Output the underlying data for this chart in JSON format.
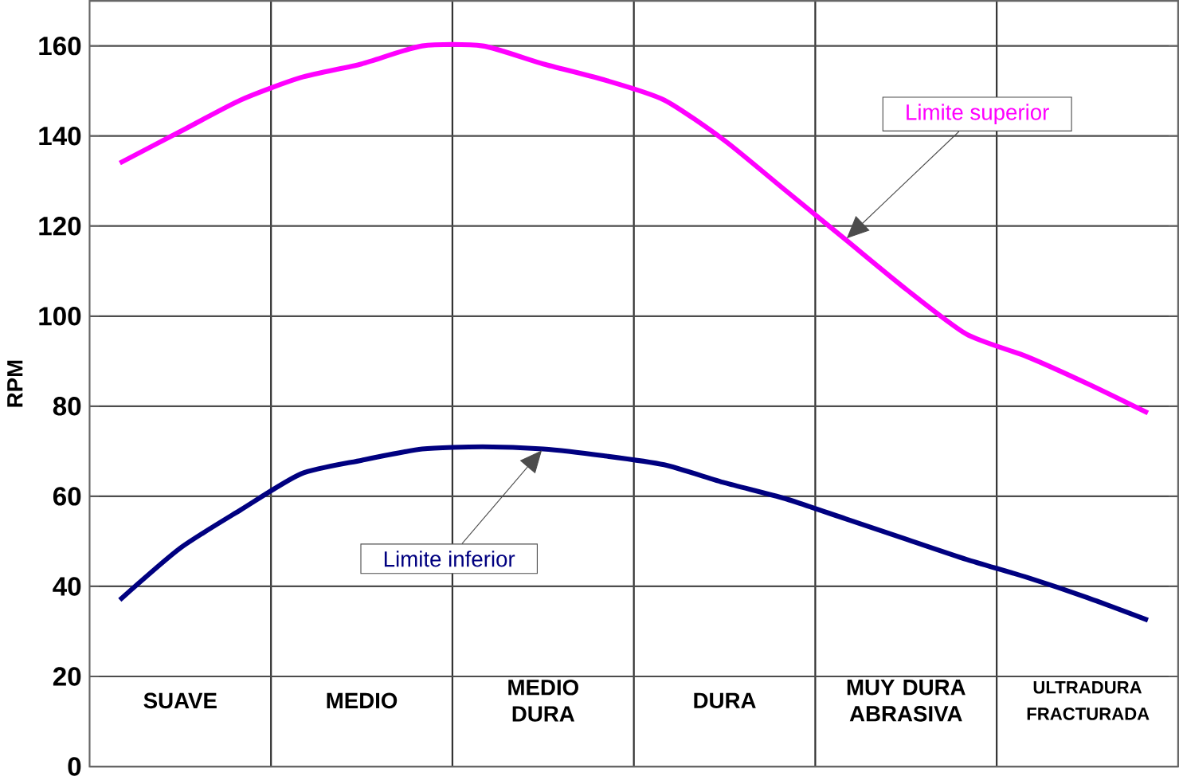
{
  "chart_data": {
    "type": "line",
    "ylabel": "RPM",
    "categories": [
      null,
      "SUAVE",
      null,
      null,
      "MEDIO",
      null,
      null,
      "MEDIO DURA",
      null,
      null,
      "DURA",
      null,
      null,
      "MUY DURA ABRASIVA",
      null,
      null,
      "ULTRADURA FRACTURADA",
      null
    ],
    "series": [
      {
        "name": "Limite superior",
        "color": "#ff00ff",
        "values": [
          134,
          141,
          148,
          153,
          156,
          160,
          160,
          156,
          152.5,
          148,
          139,
          128,
          117,
          106,
          96,
          91,
          85,
          78.5
        ]
      },
      {
        "name": "Limite inferior",
        "color": "#000080",
        "values": [
          37,
          48.5,
          57,
          65,
          68,
          70.5,
          71,
          70.5,
          69,
          67,
          63,
          59.5,
          55,
          50.5,
          46,
          42,
          37.5,
          32.5
        ]
      }
    ],
    "ylim": [
      0,
      170
    ],
    "yticks": [
      0,
      20,
      40,
      60,
      80,
      100,
      120,
      140,
      160
    ],
    "grid": true,
    "legend": false,
    "marker": "none",
    "line_style": "solid"
  }
}
